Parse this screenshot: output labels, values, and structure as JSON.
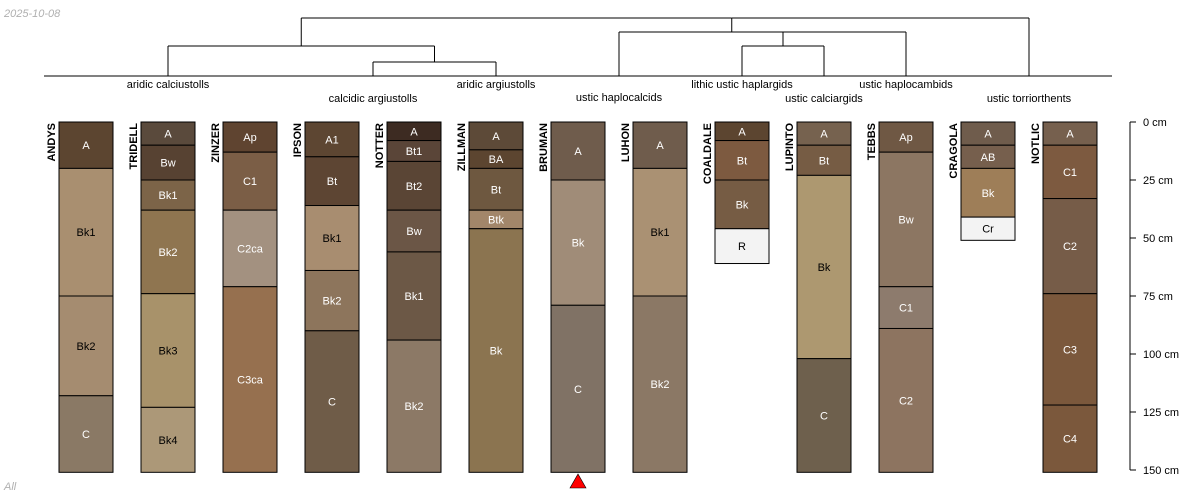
{
  "corner_date": "2025-10-08",
  "corner_footer": "All",
  "depth_axis": {
    "max_depth_cm": 150,
    "ticks": [
      {
        "depth": 0,
        "label": "0 cm"
      },
      {
        "depth": 25,
        "label": "25 cm"
      },
      {
        "depth": 50,
        "label": "50 cm"
      },
      {
        "depth": 75,
        "label": "75 cm"
      },
      {
        "depth": 100,
        "label": "100 cm"
      },
      {
        "depth": 125,
        "label": "125 cm"
      },
      {
        "depth": 150,
        "label": "150 cm"
      }
    ]
  },
  "marker": {
    "profile": "BRUMAN",
    "color": "#ff0000"
  },
  "groups": [
    {
      "label": "aridic calciustolls",
      "members": [
        "ANDYS",
        "TRIDELL",
        "ZINZER"
      ]
    },
    {
      "label": "calcidic argiustolls",
      "members": [
        "IPSON",
        "NOTTER"
      ]
    },
    {
      "label": "aridic argiustolls",
      "members": [
        "ZILLMAN"
      ]
    },
    {
      "label": "ustic haplocalcids",
      "members": [
        "BRUMAN",
        "LUHON"
      ]
    },
    {
      "label": "lithic ustic haplargids",
      "members": [
        "COALDALE"
      ]
    },
    {
      "label": "ustic calciargids",
      "members": [
        "LUPINTO"
      ]
    },
    {
      "label": "ustic haplocambids",
      "members": [
        "TEBBS"
      ]
    },
    {
      "label": "ustic torriorthents",
      "members": [
        "CRAGOLA",
        "NOTLIC"
      ]
    }
  ],
  "profiles": [
    {
      "name": "ANDYS",
      "horizons": [
        {
          "name": "A",
          "top": 0,
          "bottom": 20,
          "color": "#5c4530",
          "label_color": "#ffffff"
        },
        {
          "name": "Bk1",
          "top": 20,
          "bottom": 75,
          "color": "#a98f70",
          "label_color": "#000000"
        },
        {
          "name": "Bk2",
          "top": 75,
          "bottom": 118,
          "color": "#a58c70",
          "label_color": "#000000"
        },
        {
          "name": "C",
          "top": 118,
          "bottom": 151,
          "color": "#8a7965",
          "label_color": "#ffffff"
        }
      ]
    },
    {
      "name": "TRIDELL",
      "horizons": [
        {
          "name": "A",
          "top": 0,
          "bottom": 10,
          "color": "#5a4a3c",
          "label_color": "#ffffff"
        },
        {
          "name": "Bw",
          "top": 10,
          "bottom": 25,
          "color": "#574232",
          "label_color": "#ffffff"
        },
        {
          "name": "Bk1",
          "top": 25,
          "bottom": 38,
          "color": "#7c6448",
          "label_color": "#ffffff"
        },
        {
          "name": "Bk2",
          "top": 38,
          "bottom": 74,
          "color": "#8f7550",
          "label_color": "#ffffff"
        },
        {
          "name": "Bk3",
          "top": 74,
          "bottom": 123,
          "color": "#a8926a",
          "label_color": "#000000"
        },
        {
          "name": "Bk4",
          "top": 123,
          "bottom": 151,
          "color": "#ac9878",
          "label_color": "#000000"
        }
      ]
    },
    {
      "name": "ZINZER",
      "horizons": [
        {
          "name": "Ap",
          "top": 0,
          "bottom": 13,
          "color": "#5f4430",
          "label_color": "#ffffff"
        },
        {
          "name": "C1",
          "top": 13,
          "bottom": 38,
          "color": "#7b5e46",
          "label_color": "#ffffff"
        },
        {
          "name": "C2ca",
          "top": 38,
          "bottom": 71,
          "color": "#a39180",
          "label_color": "#ffffff"
        },
        {
          "name": "C3ca",
          "top": 71,
          "bottom": 151,
          "color": "#96704f",
          "label_color": "#ffffff"
        }
      ]
    },
    {
      "name": "IPSON",
      "horizons": [
        {
          "name": "A1",
          "top": 0,
          "bottom": 15,
          "color": "#5d4632",
          "label_color": "#ffffff"
        },
        {
          "name": "Bt",
          "top": 15,
          "bottom": 36,
          "color": "#5d4533",
          "label_color": "#ffffff"
        },
        {
          "name": "Bk1",
          "top": 36,
          "bottom": 64,
          "color": "#a88d70",
          "label_color": "#000000"
        },
        {
          "name": "Bk2",
          "top": 64,
          "bottom": 90,
          "color": "#8d755c",
          "label_color": "#ffffff"
        },
        {
          "name": "C",
          "top": 90,
          "bottom": 151,
          "color": "#6f5c48",
          "label_color": "#ffffff"
        }
      ]
    },
    {
      "name": "NOTTER",
      "horizons": [
        {
          "name": "A",
          "top": 0,
          "bottom": 8,
          "color": "#3d2b22",
          "label_color": "#ffffff"
        },
        {
          "name": "Bt1",
          "top": 8,
          "bottom": 17,
          "color": "#5a4538",
          "label_color": "#ffffff"
        },
        {
          "name": "Bt2",
          "top": 17,
          "bottom": 38,
          "color": "#5a4535",
          "label_color": "#ffffff"
        },
        {
          "name": "Bw",
          "top": 38,
          "bottom": 56,
          "color": "#6b5646",
          "label_color": "#ffffff"
        },
        {
          "name": "Bk1",
          "top": 56,
          "bottom": 94,
          "color": "#6c5846",
          "label_color": "#ffffff"
        },
        {
          "name": "Bk2",
          "top": 94,
          "bottom": 151,
          "color": "#8c7966",
          "label_color": "#ffffff"
        }
      ]
    },
    {
      "name": "ZILLMAN",
      "horizons": [
        {
          "name": "A",
          "top": 0,
          "bottom": 12,
          "color": "#5d4a38",
          "label_color": "#ffffff"
        },
        {
          "name": "BA",
          "top": 12,
          "bottom": 20,
          "color": "#5c4530",
          "label_color": "#ffffff"
        },
        {
          "name": "Bt",
          "top": 20,
          "bottom": 38,
          "color": "#6e5840",
          "label_color": "#ffffff"
        },
        {
          "name": "Btk",
          "top": 38,
          "bottom": 46,
          "color": "#a2866a",
          "label_color": "#ffffff"
        },
        {
          "name": "Bk",
          "top": 46,
          "bottom": 151,
          "color": "#8b7450",
          "label_color": "#ffffff"
        }
      ]
    },
    {
      "name": "BRUMAN",
      "horizons": [
        {
          "name": "A",
          "top": 0,
          "bottom": 25,
          "color": "#6f5c4c",
          "label_color": "#ffffff"
        },
        {
          "name": "Bk",
          "top": 25,
          "bottom": 79,
          "color": "#a08c78",
          "label_color": "#ffffff"
        },
        {
          "name": "C",
          "top": 79,
          "bottom": 151,
          "color": "#807265",
          "label_color": "#ffffff"
        }
      ]
    },
    {
      "name": "LUHON",
      "horizons": [
        {
          "name": "A",
          "top": 0,
          "bottom": 20,
          "color": "#6f5c4c",
          "label_color": "#ffffff"
        },
        {
          "name": "Bk1",
          "top": 20,
          "bottom": 75,
          "color": "#aa9173",
          "label_color": "#000000"
        },
        {
          "name": "Bk2",
          "top": 75,
          "bottom": 151,
          "color": "#8b7865",
          "label_color": "#ffffff"
        }
      ]
    },
    {
      "name": "COALDALE",
      "horizons": [
        {
          "name": "A",
          "top": 0,
          "bottom": 8,
          "color": "#5c4530",
          "label_color": "#ffffff"
        },
        {
          "name": "Bt",
          "top": 8,
          "bottom": 25,
          "color": "#7d5a40",
          "label_color": "#ffffff"
        },
        {
          "name": "Bk",
          "top": 25,
          "bottom": 46,
          "color": "#765c44",
          "label_color": "#ffffff"
        },
        {
          "name": "R",
          "top": 46,
          "bottom": 61,
          "color": "#f3f3f3",
          "label_color": "#000000"
        }
      ]
    },
    {
      "name": "LUPINTO",
      "horizons": [
        {
          "name": "A",
          "top": 0,
          "bottom": 10,
          "color": "#76624f",
          "label_color": "#ffffff"
        },
        {
          "name": "Bt",
          "top": 10,
          "bottom": 23,
          "color": "#765c44",
          "label_color": "#ffffff"
        },
        {
          "name": "Bk",
          "top": 23,
          "bottom": 102,
          "color": "#ad9870",
          "label_color": "#000000"
        },
        {
          "name": "C",
          "top": 102,
          "bottom": 151,
          "color": "#6e604d",
          "label_color": "#ffffff"
        }
      ]
    },
    {
      "name": "TEBBS",
      "horizons": [
        {
          "name": "Ap",
          "top": 0,
          "bottom": 13,
          "color": "#6f5844",
          "label_color": "#ffffff"
        },
        {
          "name": "Bw",
          "top": 13,
          "bottom": 71,
          "color": "#8c7662",
          "label_color": "#ffffff"
        },
        {
          "name": "C1",
          "top": 71,
          "bottom": 89,
          "color": "#8d7b6d",
          "label_color": "#ffffff"
        },
        {
          "name": "C2",
          "top": 89,
          "bottom": 151,
          "color": "#8d7460",
          "label_color": "#ffffff"
        }
      ]
    },
    {
      "name": "CRAGOLA",
      "horizons": [
        {
          "name": "A",
          "top": 0,
          "bottom": 10,
          "color": "#6f5c4c",
          "label_color": "#ffffff"
        },
        {
          "name": "AB",
          "top": 10,
          "bottom": 20,
          "color": "#765f4d",
          "label_color": "#ffffff"
        },
        {
          "name": "Bk",
          "top": 20,
          "bottom": 41,
          "color": "#9e7e58",
          "label_color": "#ffffff"
        },
        {
          "name": "Cr",
          "top": 41,
          "bottom": 51,
          "color": "#f3f3f3",
          "label_color": "#000000"
        }
      ]
    },
    {
      "name": "NOTLIC",
      "horizons": [
        {
          "name": "A",
          "top": 0,
          "bottom": 10,
          "color": "#76604e",
          "label_color": "#ffffff"
        },
        {
          "name": "C1",
          "top": 10,
          "bottom": 33,
          "color": "#7d5a40",
          "label_color": "#ffffff"
        },
        {
          "name": "C2",
          "top": 33,
          "bottom": 74,
          "color": "#765c48",
          "label_color": "#ffffff"
        },
        {
          "name": "C3",
          "top": 74,
          "bottom": 122,
          "color": "#7b583c",
          "label_color": "#ffffff"
        },
        {
          "name": "C4",
          "top": 122,
          "bottom": 151,
          "color": "#7b583c",
          "label_color": "#ffffff"
        }
      ]
    }
  ]
}
